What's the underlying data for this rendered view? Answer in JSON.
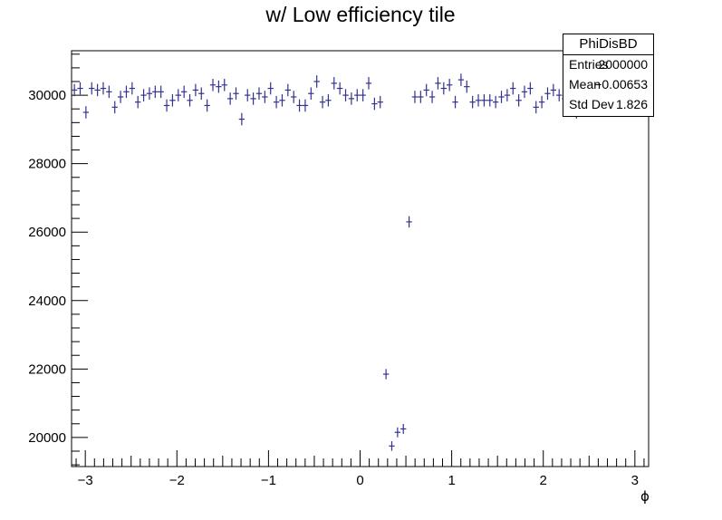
{
  "chart_data": {
    "type": "scatter",
    "title": "w/ Low efficiency tile",
    "xlabel": "ϕ",
    "ylabel": "",
    "xlim": [
      -3.15,
      3.15
    ],
    "ylim": [
      19150,
      31300
    ],
    "xticks": [
      -3,
      -2,
      -1,
      0,
      1,
      2,
      3
    ],
    "xtick_labels": [
      "−3",
      "−2",
      "−1",
      "0",
      "1",
      "2",
      "3"
    ],
    "yticks": [
      20000,
      22000,
      24000,
      26000,
      28000,
      30000
    ],
    "ytick_labels": [
      "20000",
      "22000",
      "24000",
      "26000",
      "28000",
      "30000"
    ],
    "grid": false,
    "marker_color": "#33338f",
    "bin_width": 0.063,
    "series": [
      {
        "x": [
          -3.119,
          -3.056,
          -2.993,
          -2.93,
          -2.867,
          -2.804,
          -2.741,
          -2.678,
          -2.615,
          -2.552,
          -2.489,
          -2.426,
          -2.363,
          -2.3,
          -2.237,
          -2.174,
          -2.111,
          -2.048,
          -1.985,
          -1.922,
          -1.859,
          -1.796,
          -1.733,
          -1.67,
          -1.607,
          -1.544,
          -1.481,
          -1.418,
          -1.355,
          -1.292,
          -1.229,
          -1.166,
          -1.103,
          -1.04,
          -0.977,
          -0.914,
          -0.851,
          -0.788,
          -0.725,
          -0.662,
          -0.599,
          -0.536,
          -0.473,
          -0.41,
          -0.347,
          -0.284,
          -0.221,
          -0.158,
          -0.095,
          -0.032,
          0.031,
          0.094,
          0.157,
          0.22,
          0.283,
          0.346,
          0.409,
          0.472,
          0.535,
          0.598,
          0.661,
          0.724,
          0.787,
          0.85,
          0.913,
          0.976,
          1.039,
          1.102,
          1.165,
          1.228,
          1.291,
          1.354,
          1.417,
          1.48,
          1.543,
          1.606,
          1.669,
          1.732,
          1.795,
          1.858,
          1.921,
          1.984,
          2.047,
          2.11,
          2.173,
          2.236,
          2.299,
          2.362
        ],
        "y": [
          30150,
          30200,
          29500,
          30200,
          30150,
          30200,
          30100,
          29650,
          29950,
          30100,
          30200,
          29800,
          30000,
          30050,
          30100,
          30100,
          29700,
          29850,
          30000,
          30100,
          29850,
          30150,
          30050,
          29700,
          30300,
          30250,
          30300,
          29900,
          30050,
          29300,
          30000,
          29900,
          30050,
          29950,
          30200,
          29800,
          29850,
          30150,
          29950,
          29700,
          29700,
          30050,
          30400,
          29800,
          29850,
          30350,
          30200,
          30000,
          29900,
          30000,
          30000,
          30350,
          29750,
          29800,
          21850,
          19750,
          20150,
          20250,
          26300,
          29950,
          29950,
          30150,
          29950,
          30350,
          30200,
          30300,
          29800,
          30450,
          30250,
          29800,
          29850,
          29850,
          29850,
          29800,
          29950,
          30000,
          30200,
          29850,
          30100,
          30200,
          29650,
          29800,
          30050,
          30150,
          30000,
          29900,
          29950,
          29500
        ],
        "err": [
          180,
          180,
          180,
          180,
          180,
          180,
          180,
          180,
          180,
          180,
          180,
          180,
          180,
          180,
          180,
          180,
          180,
          180,
          180,
          180,
          180,
          180,
          180,
          180,
          180,
          180,
          180,
          180,
          180,
          180,
          180,
          180,
          180,
          180,
          180,
          180,
          180,
          180,
          180,
          180,
          180,
          180,
          180,
          180,
          180,
          180,
          180,
          180,
          180,
          180,
          180,
          180,
          180,
          180,
          150,
          140,
          145,
          145,
          165,
          180,
          180,
          180,
          180,
          180,
          180,
          180,
          180,
          180,
          180,
          180,
          180,
          180,
          180,
          180,
          180,
          180,
          180,
          180,
          180,
          180,
          180,
          180,
          180,
          180,
          180,
          180,
          180,
          180
        ]
      }
    ]
  },
  "stats": {
    "title": "PhiDisBD",
    "rows": [
      {
        "key": "Entries",
        "value": "2000000"
      },
      {
        "key": "Mean",
        "value": "−0.00653"
      },
      {
        "key": "Std Dev",
        "value": "1.826"
      }
    ]
  }
}
